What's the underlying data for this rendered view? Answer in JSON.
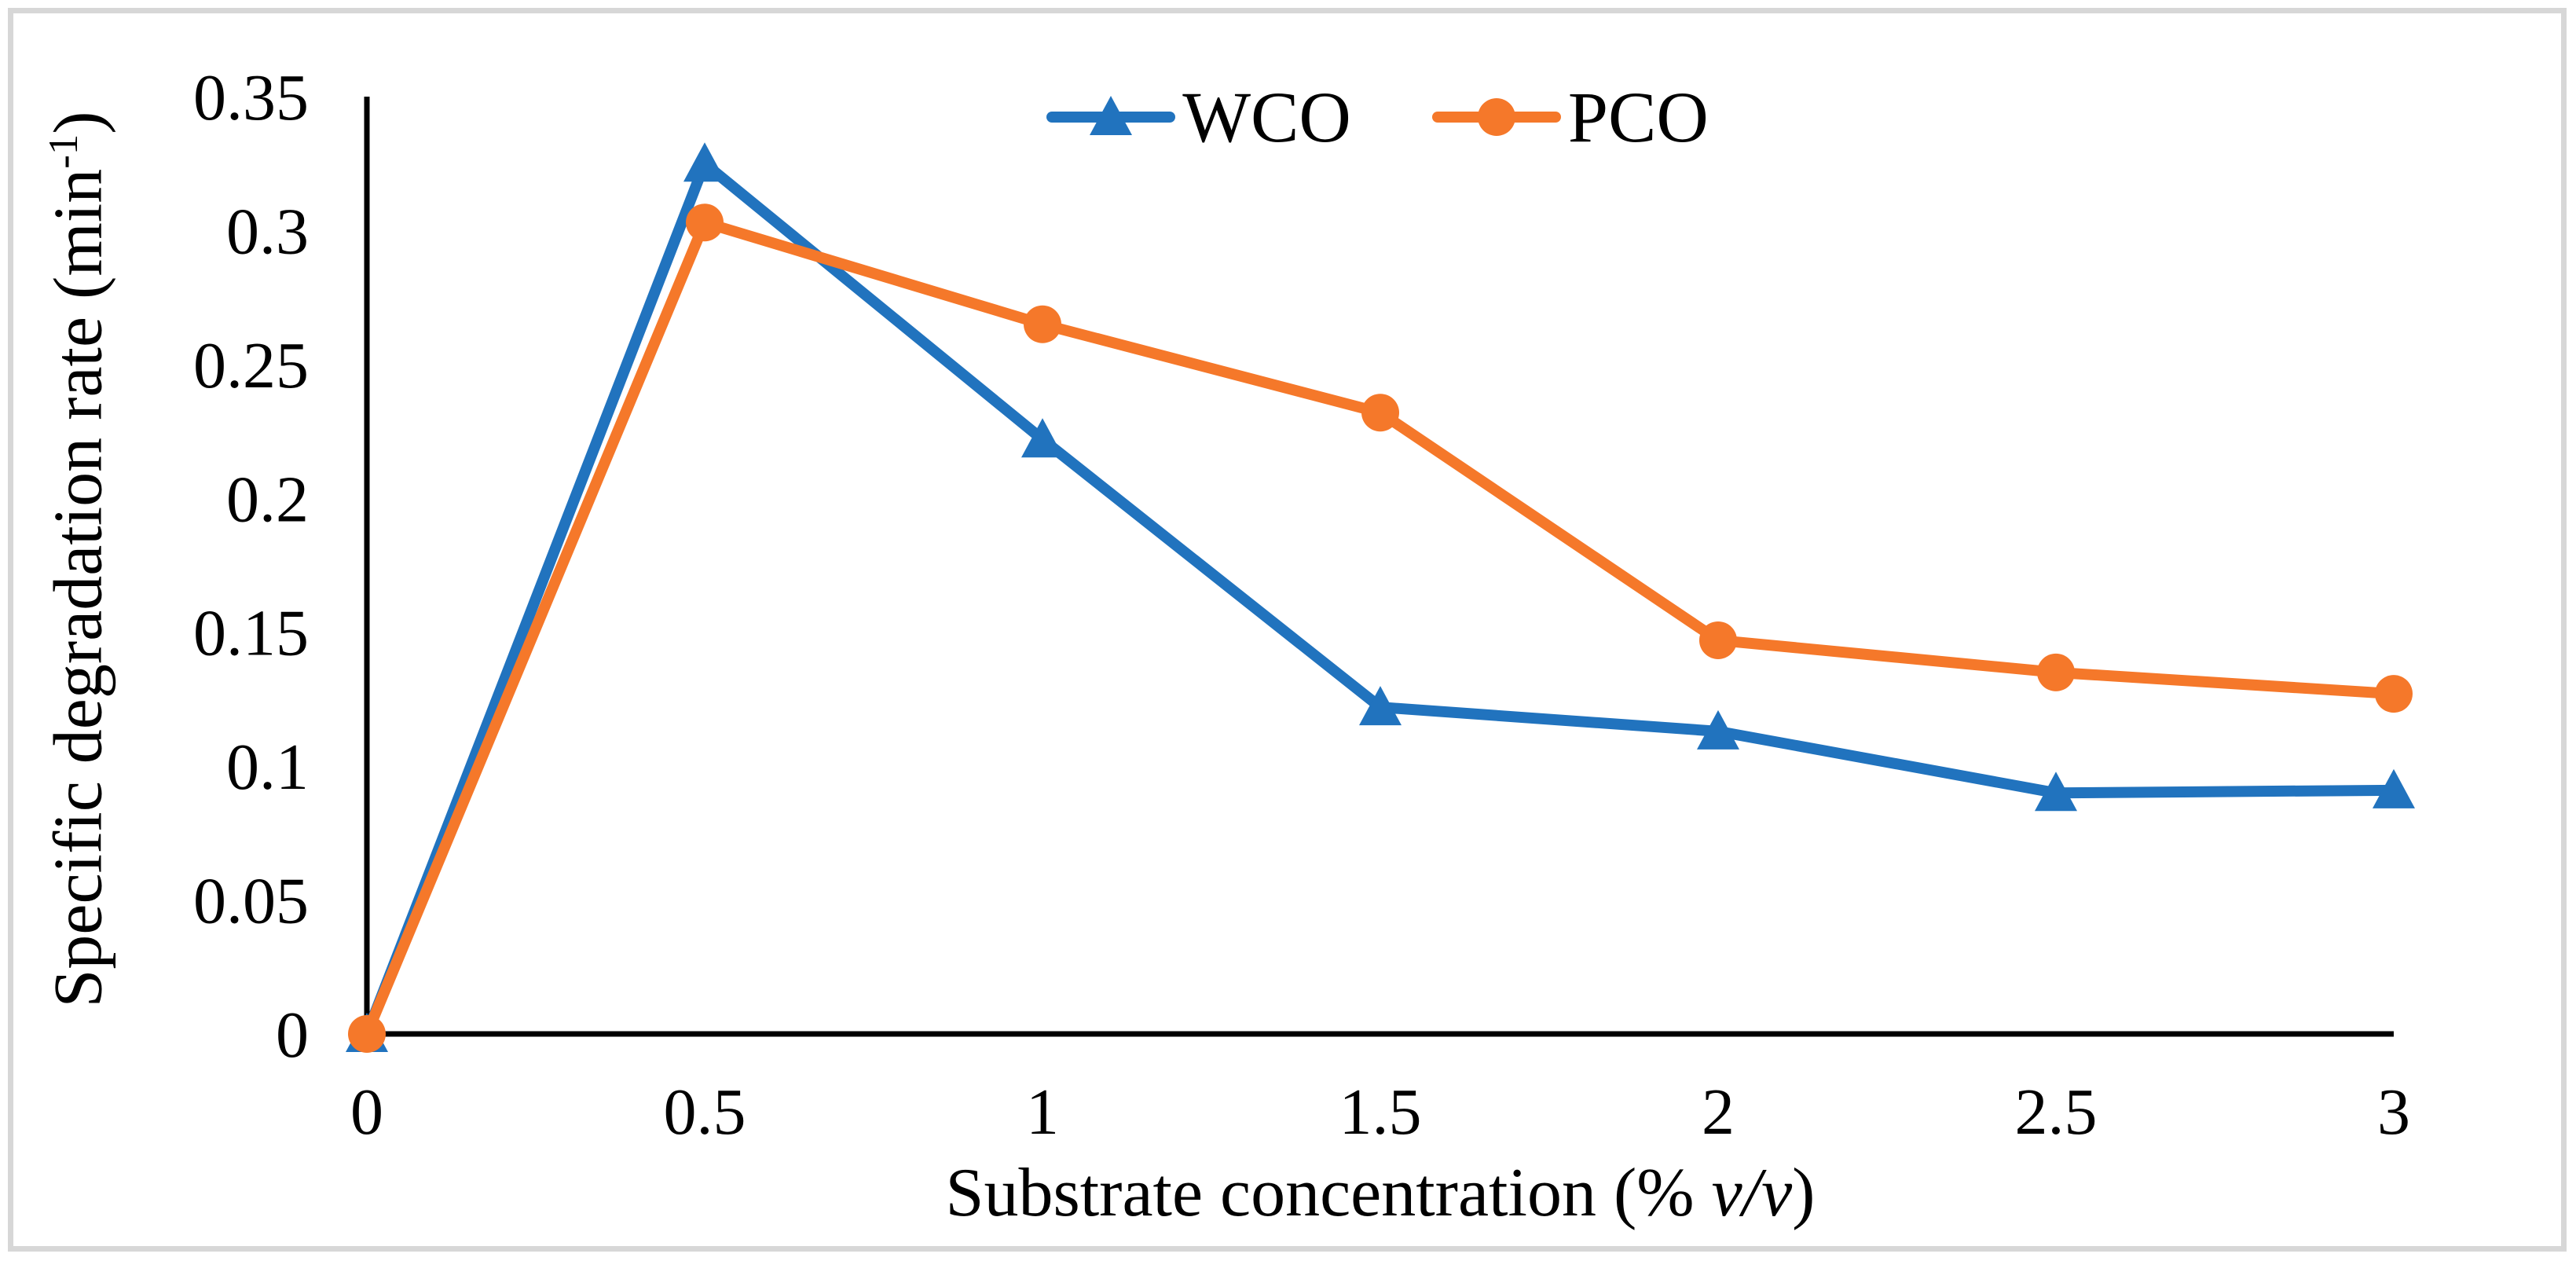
{
  "figure": {
    "background_color": "#FFFFFF",
    "frame_border_color": "#D7D7D7",
    "axis_color": "#000000"
  },
  "chart_data": {
    "type": "line",
    "title": "",
    "xlabel_prefix": "Substrate concentration (% ",
    "xlabel_italic": "v/v",
    "xlabel_suffix": ")",
    "ylabel_prefix": "Specific degradation rate (min",
    "ylabel_superscript": "-1",
    "ylabel_suffix": ")",
    "xlim": [
      0,
      3
    ],
    "ylim": [
      0,
      0.35
    ],
    "grid": false,
    "legend_position": "top-center",
    "x": [
      0,
      0.5,
      1,
      1.5,
      2,
      2.5,
      3
    ],
    "x_tick_labels": [
      "0",
      "0.5",
      "1",
      "1.5",
      "2",
      "2.5",
      "3"
    ],
    "y_ticks": [
      0,
      0.05,
      0.1,
      0.15,
      0.2,
      0.25,
      0.3,
      0.35
    ],
    "y_tick_labels": [
      "0",
      "0.05",
      "0.1",
      "0.15",
      "0.2",
      "0.25",
      "0.3",
      "0.35"
    ],
    "series": [
      {
        "name": "WCO",
        "marker": "triangle",
        "color": "#2173BE",
        "values": [
          0,
          0.325,
          0.222,
          0.122,
          0.113,
          0.09,
          0.091
        ]
      },
      {
        "name": "PCO",
        "marker": "circle",
        "color": "#F5782A",
        "values": [
          0,
          0.303,
          0.265,
          0.232,
          0.147,
          0.135,
          0.127
        ]
      }
    ]
  }
}
